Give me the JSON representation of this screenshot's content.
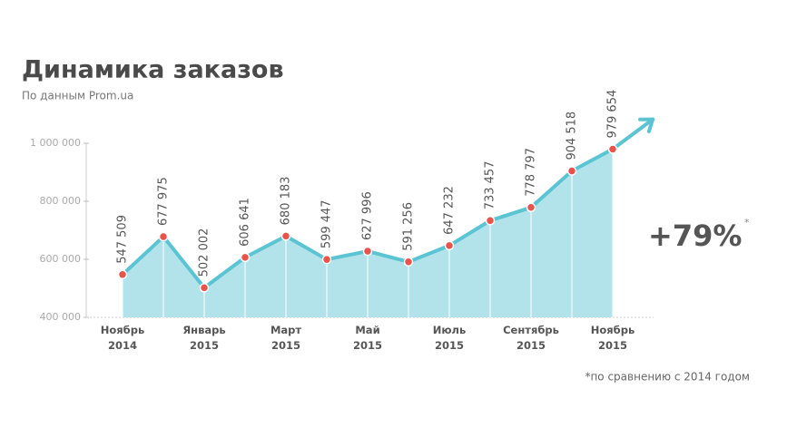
{
  "chart_data": {
    "type": "line",
    "title": "Динамика заказов",
    "subtitle": "По данным Prom.ua",
    "categories": [
      "Ноябрь 2014",
      null,
      "Январь 2015",
      null,
      "Март 2015",
      null,
      "Май 2015",
      null,
      "Июль 2015",
      null,
      "Сентябрь 2015",
      null,
      "Ноябрь 2015"
    ],
    "values": [
      547509,
      677975,
      502002,
      606641,
      680183,
      599447,
      627996,
      591256,
      647232,
      733457,
      778797,
      904518,
      979654
    ],
    "value_labels": [
      "547 509",
      "677 975",
      "502 002",
      "606 641",
      "680 183",
      "599 447",
      "627 996",
      "591 256",
      "647 232",
      "733 457",
      "778 797",
      "904 518",
      "979 654"
    ],
    "color": "#5bc4d3",
    "fill_color": "#b2e3ea",
    "point_color": "#e8544b",
    "ylim": [
      400000,
      1000000
    ],
    "yticks": [
      {
        "value": 400000,
        "label": "400 000"
      },
      {
        "value": 600000,
        "label": "600 000"
      },
      {
        "value": 800000,
        "label": "800 000"
      },
      {
        "value": 1000000,
        "label": "1 000 000"
      }
    ],
    "annotation": "+79%",
    "annotation_mark": "*",
    "footnote": "*по сравнению с 2014 годом"
  }
}
